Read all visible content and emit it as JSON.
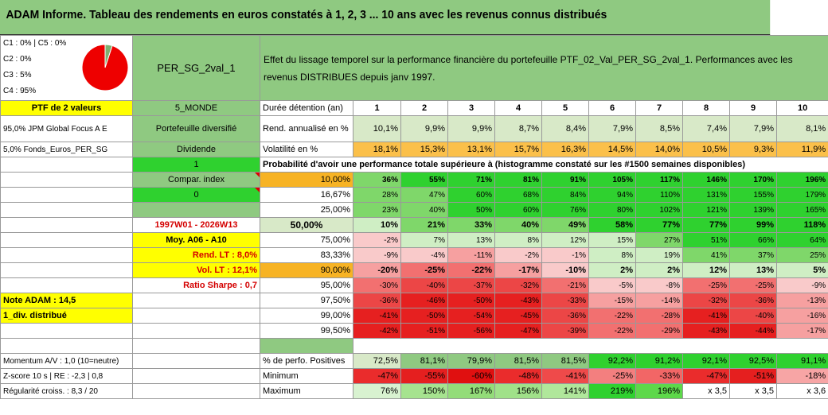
{
  "title": "ADAM Informe. Tableau des rendements en euros constatés à 1, 2, 3 ... 10 ans avec les revenus connus distribués",
  "pie": {
    "legend": [
      "C1 : 0% | C5 : 0%",
      "C2 : 0%",
      "C3 : 5%",
      "C4 : 95%"
    ],
    "slices": [
      {
        "label": "C4",
        "value": 95,
        "color": "#ee0000"
      },
      {
        "label": "C3",
        "value": 5,
        "color": "#7fb071"
      }
    ]
  },
  "portfolio_name": "PER_SG_2val_1",
  "description": "Effet du lissage temporel sur la performance financière du portefeuille PTF_02_Val_PER_SG_2val_1. Performances avec les revenus DISTRIBUES depuis janv 1997.",
  "ptf_label": "PTF de 2 valeurs",
  "zone": "5_MONDE",
  "holdings": [
    "95,0% JPM Global Focus A E",
    "5,0% Fonds_Euros_PER_SG"
  ],
  "type_label": "Portefeuille diversifié",
  "dividend_label": "Dividende",
  "dividend_value": "1",
  "compar_label": "Compar. index",
  "compar_value": "0",
  "period": "1997W01 - 2026W13",
  "moy": "Moy. A06 - A10",
  "rend_lt": "Rend. LT : 8,0%",
  "vol_lt": "Vol. LT : 12,1%",
  "sharpe": "Ratio Sharpe : 0,7",
  "note": "Note ADAM : 14,5",
  "div_type": "1_div. distribué",
  "momentum": "Momentum A/V : 1,0 (10=neutre)",
  "zscore": "Z-score 10 s | RE : -2,3 | 0,8",
  "regularite": "Régularité croiss. : 8,3 / 20",
  "headers": {
    "duree": "Durée détention (an)",
    "rend": "Rend. annualisé en %",
    "vol": "Volatilité en %",
    "proba": "Probabilité d'avoir une performance totale supérieure à (histogramme constaté sur les #1500 semaines disponibles)",
    "positives": "% de perfo. Positives",
    "minimum": "Minimum",
    "maximum": "Maximum"
  },
  "years": [
    "1",
    "2",
    "3",
    "4",
    "5",
    "6",
    "7",
    "8",
    "9",
    "10"
  ],
  "rend": [
    "10,1%",
    "9,9%",
    "9,9%",
    "8,7%",
    "8,4%",
    "7,9%",
    "8,5%",
    "7,4%",
    "7,9%",
    "8,1%"
  ],
  "vol": [
    "18,1%",
    "15,3%",
    "13,1%",
    "15,7%",
    "16,3%",
    "14,5%",
    "14,0%",
    "10,5%",
    "9,3%",
    "11,9%"
  ],
  "probs": [
    {
      "level": "10,00%",
      "values": [
        "36%",
        "55%",
        "71%",
        "81%",
        "91%",
        "105%",
        "117%",
        "146%",
        "170%",
        "196%"
      ]
    },
    {
      "level": "16,67%",
      "values": [
        "28%",
        "47%",
        "60%",
        "68%",
        "84%",
        "94%",
        "110%",
        "131%",
        "155%",
        "179%"
      ]
    },
    {
      "level": "25,00%",
      "values": [
        "23%",
        "40%",
        "50%",
        "60%",
        "76%",
        "80%",
        "102%",
        "121%",
        "139%",
        "165%"
      ]
    },
    {
      "level": "50,00%",
      "values": [
        "10%",
        "21%",
        "33%",
        "40%",
        "49%",
        "58%",
        "77%",
        "77%",
        "99%",
        "118%"
      ]
    },
    {
      "level": "75,00%",
      "values": [
        "-2%",
        "7%",
        "13%",
        "8%",
        "12%",
        "15%",
        "27%",
        "51%",
        "66%",
        "64%"
      ]
    },
    {
      "level": "83,33%",
      "values": [
        "-9%",
        "-4%",
        "-11%",
        "-2%",
        "-1%",
        "8%",
        "19%",
        "41%",
        "37%",
        "25%"
      ]
    },
    {
      "level": "90,00%",
      "values": [
        "-20%",
        "-25%",
        "-22%",
        "-17%",
        "-10%",
        "2%",
        "2%",
        "12%",
        "13%",
        "5%"
      ]
    },
    {
      "level": "95,00%",
      "values": [
        "-30%",
        "-40%",
        "-37%",
        "-32%",
        "-21%",
        "-5%",
        "-8%",
        "-25%",
        "-25%",
        "-9%"
      ]
    },
    {
      "level": "97,50%",
      "values": [
        "-36%",
        "-46%",
        "-50%",
        "-43%",
        "-33%",
        "-15%",
        "-14%",
        "-32%",
        "-36%",
        "-13%"
      ]
    },
    {
      "level": "99,00%",
      "values": [
        "-41%",
        "-50%",
        "-54%",
        "-45%",
        "-36%",
        "-22%",
        "-28%",
        "-41%",
        "-40%",
        "-16%"
      ]
    },
    {
      "level": "99,50%",
      "values": [
        "-42%",
        "-51%",
        "-56%",
        "-47%",
        "-39%",
        "-22%",
        "-29%",
        "-43%",
        "-44%",
        "-17%"
      ]
    }
  ],
  "positives": [
    "72,5%",
    "81,1%",
    "79,9%",
    "81,5%",
    "81,5%",
    "92,2%",
    "91,2%",
    "92,1%",
    "92,5%",
    "91,1%"
  ],
  "minimum": [
    "-47%",
    "-55%",
    "-60%",
    "-48%",
    "-41%",
    "-25%",
    "-33%",
    "-47%",
    "-51%",
    "-18%"
  ],
  "maximum": [
    "76%",
    "150%",
    "167%",
    "156%",
    "141%",
    "219%",
    "196%",
    "x 3,5",
    "x 3,5",
    "x 3,6"
  ]
}
